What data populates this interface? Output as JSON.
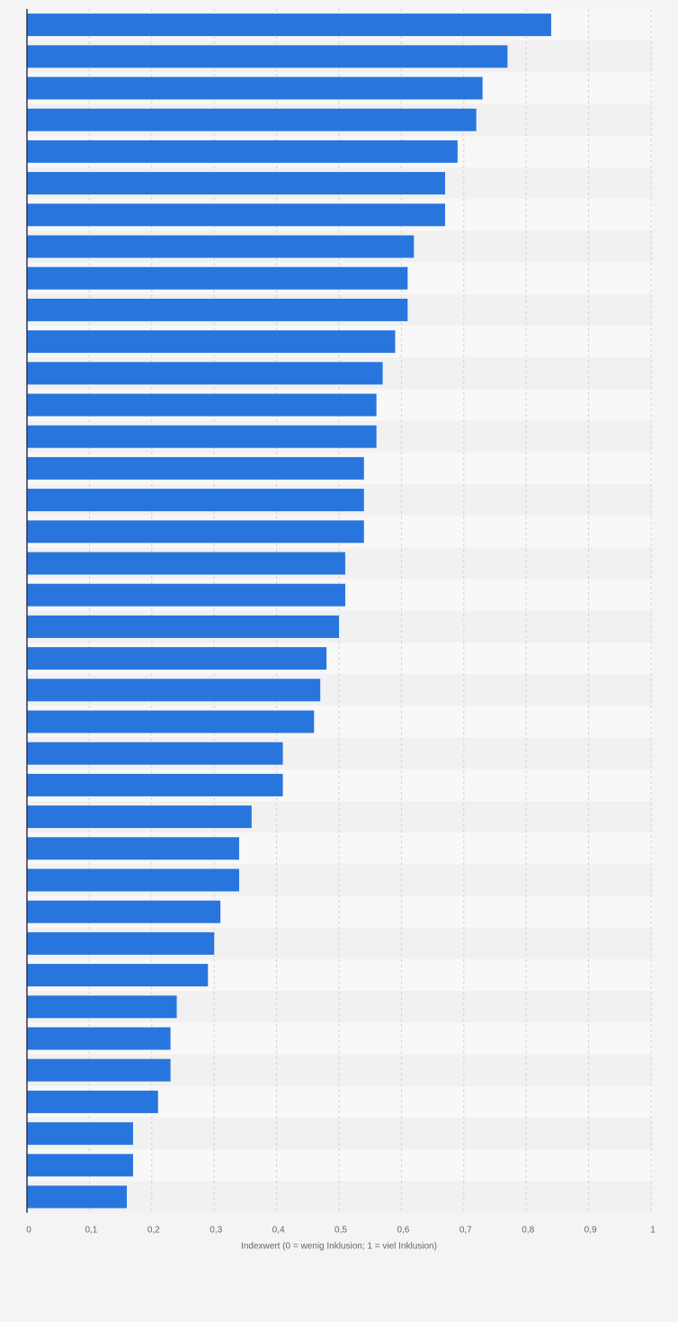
{
  "chart_data": {
    "type": "bar",
    "orientation": "horizontal",
    "values": [
      0.84,
      0.77,
      0.73,
      0.72,
      0.69,
      0.67,
      0.67,
      0.62,
      0.61,
      0.61,
      0.59,
      0.57,
      0.56,
      0.56,
      0.54,
      0.54,
      0.54,
      0.51,
      0.51,
      0.5,
      0.48,
      0.47,
      0.46,
      0.41,
      0.41,
      0.36,
      0.34,
      0.34,
      0.31,
      0.3,
      0.29,
      0.24,
      0.23,
      0.23,
      0.21,
      0.17,
      0.17,
      0.16
    ],
    "xlim": [
      0,
      1
    ],
    "xticks": [
      0,
      0.1,
      0.2,
      0.3,
      0.4,
      0.5,
      0.6,
      0.7,
      0.8,
      0.9,
      1
    ],
    "xtick_labels": [
      "0",
      "0,1",
      "0,2",
      "0,3",
      "0,4",
      "0,5",
      "0,6",
      "0,7",
      "0,8",
      "0,9",
      "1"
    ],
    "xlabel": "Indexwert (0 = wenig Inklusion; 1 = viel Inklusion)",
    "grid": true,
    "legend": "none"
  },
  "colors": {
    "bar": "#2876dd",
    "band_light": "#f8f8f8",
    "band_dark": "#f1f1f1",
    "grid": "#d2d2d2",
    "axis": "#333355",
    "background": "#f4f4f4"
  }
}
